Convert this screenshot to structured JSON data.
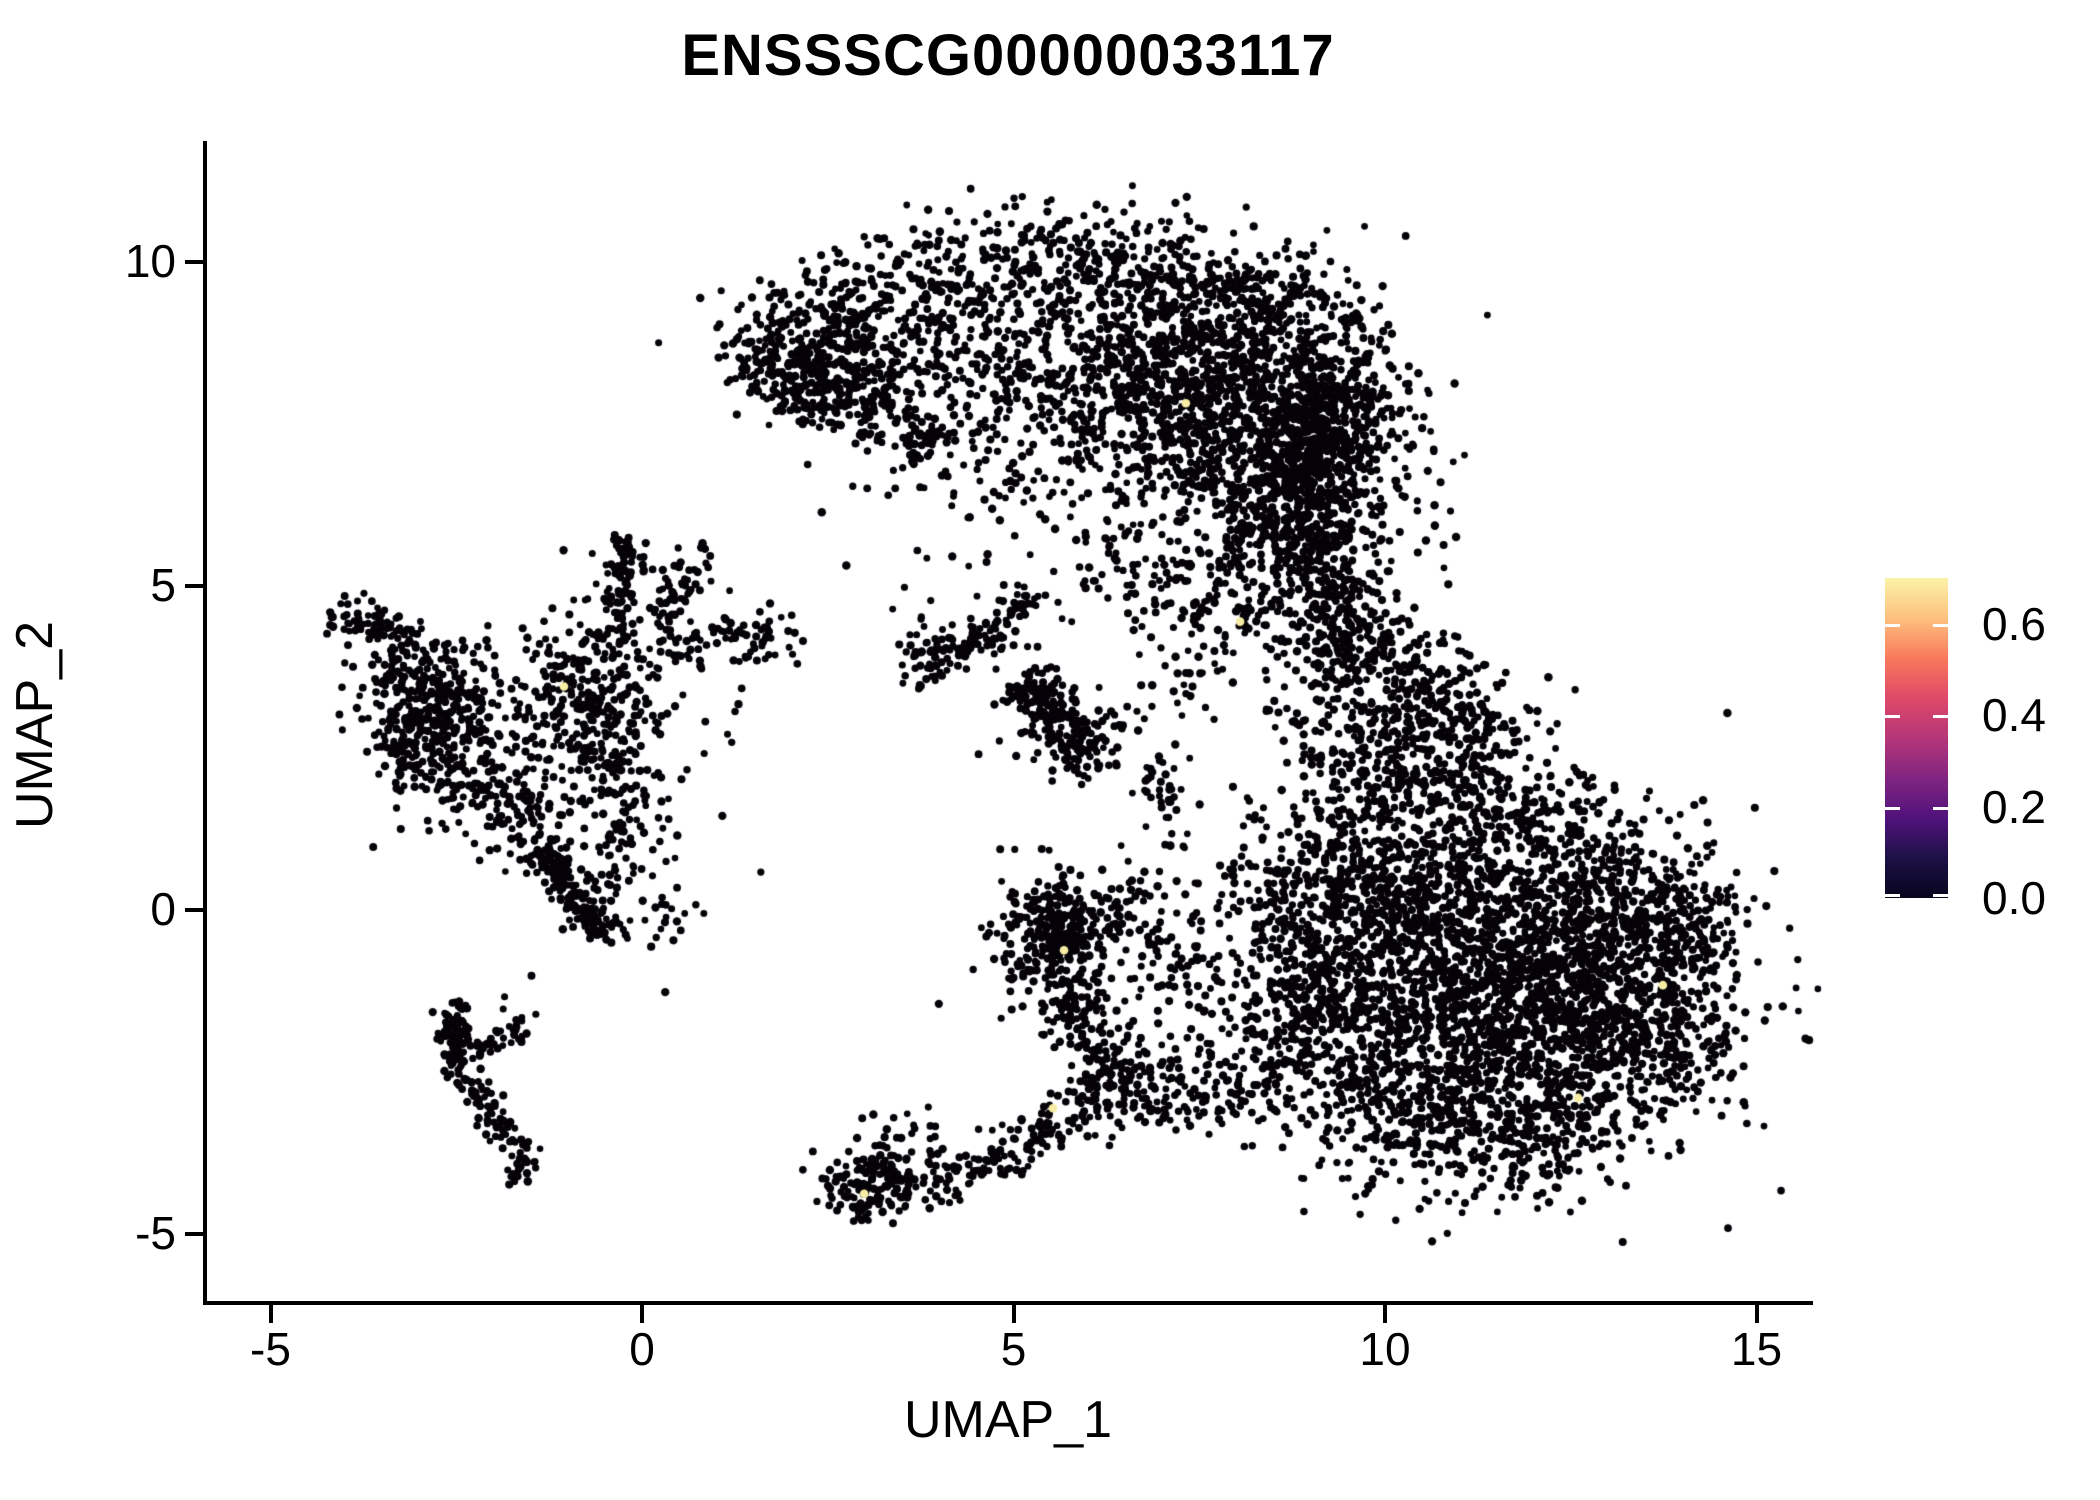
{
  "page": {
    "title": "ENSSSCG00000033117"
  },
  "chart_data": {
    "type": "scatter",
    "title": "ENSSSCG00000033117",
    "xlabel": "UMAP_1",
    "ylabel": "UMAP_2",
    "xlim": [
      -5.9,
      15.8
    ],
    "ylim": [
      -6.1,
      11.8
    ],
    "x_ticks": [
      -5,
      0,
      5,
      10,
      15
    ],
    "y_ticks": [
      -5,
      0,
      5,
      10
    ],
    "grid": false,
    "legend_position": "right",
    "point_color": "#050308",
    "highlight_color": "#F6ECA4",
    "colorbar": {
      "domain": [
        0.0,
        0.7
      ],
      "tick_values": [
        0.6,
        0.4,
        0.2,
        0.0
      ],
      "tick_labels": [
        "0.6",
        "0.4",
        "0.2",
        "0.0"
      ],
      "gradient_top_to_bottom": [
        "#FCF3A8",
        "#FDC17E",
        "#F9795C",
        "#DE4968",
        "#B63679",
        "#812581",
        "#51127C",
        "#1D1147",
        "#07051C"
      ]
    },
    "clusters": [
      {
        "kind": "blob",
        "c": [
          11.4,
          -1.4
        ],
        "s": [
          1.5,
          1.25
        ],
        "n": 2100
      },
      {
        "kind": "blob",
        "c": [
          10.1,
          0.6
        ],
        "s": [
          0.9,
          0.8
        ],
        "n": 450
      },
      {
        "kind": "blob",
        "c": [
          12.9,
          -0.4
        ],
        "s": [
          0.9,
          0.85
        ],
        "n": 450
      },
      {
        "kind": "blob",
        "c": [
          14.05,
          -0.45
        ],
        "s": [
          0.38,
          0.6
        ],
        "n": 130
      },
      {
        "kind": "band",
        "path": [
          [
            9.4,
            2.3
          ],
          [
            10.8,
            1.9
          ],
          [
            12.4,
            1.2
          ],
          [
            13.3,
            0.9
          ]
        ],
        "w": 0.45,
        "n": 330
      },
      {
        "kind": "band",
        "path": [
          [
            9.4,
            -3.1
          ],
          [
            10.8,
            -3.5
          ],
          [
            12.2,
            -3.5
          ],
          [
            13.0,
            -3.0
          ]
        ],
        "w": 0.45,
        "n": 330
      },
      {
        "kind": "band",
        "path": [
          [
            8.7,
            0.8
          ],
          [
            8.8,
            -0.8
          ],
          [
            9.3,
            -2.4
          ]
        ],
        "w": 0.5,
        "n": 320
      },
      {
        "kind": "blob",
        "c": [
          9.9,
          3.1
        ],
        "s": [
          0.75,
          0.7
        ],
        "n": 260
      },
      {
        "kind": "band",
        "path": [
          [
            10.3,
            3.7
          ],
          [
            11.0,
            3.0
          ],
          [
            11.6,
            2.3
          ]
        ],
        "w": 0.4,
        "n": 170
      },
      {
        "kind": "blob",
        "c": [
          13.5,
          -2.2
        ],
        "s": [
          0.6,
          0.55
        ],
        "n": 160
      },
      {
        "kind": "band",
        "path": [
          [
            9.1,
            8.4
          ],
          [
            8.85,
            7.0
          ],
          [
            9.0,
            5.6
          ],
          [
            9.3,
            4.6
          ],
          [
            9.6,
            3.8
          ]
        ],
        "w": 0.33,
        "n": 560
      },
      {
        "kind": "band",
        "path": [
          [
            9.1,
            8.2
          ],
          [
            8.9,
            6.8
          ],
          [
            9.1,
            5.4
          ],
          [
            9.5,
            4.3
          ]
        ],
        "w": 0.7,
        "n": 180
      },
      {
        "kind": "blob",
        "c": [
          8.2,
          5.6
        ],
        "s": [
          0.25,
          0.5
        ],
        "n": 25
      },
      {
        "kind": "blob",
        "c": [
          7.2,
          8.1
        ],
        "s": [
          1.25,
          0.95
        ],
        "n": 1250
      },
      {
        "kind": "blob",
        "c": [
          8.5,
          6.6
        ],
        "s": [
          0.75,
          1.0
        ],
        "n": 480
      },
      {
        "kind": "band",
        "path": [
          [
            1.25,
            8.65
          ],
          [
            2.3,
            9.3
          ],
          [
            3.6,
            9.85
          ],
          [
            5.1,
            10.1
          ],
          [
            6.6,
            10.0
          ],
          [
            8.1,
            9.6
          ],
          [
            9.3,
            9.15
          ]
        ],
        "w": 0.42,
        "n": 650
      },
      {
        "kind": "band",
        "path": [
          [
            1.5,
            8.35
          ],
          [
            2.5,
            8.1
          ],
          [
            3.3,
            7.6
          ]
        ],
        "w": 0.35,
        "n": 280
      },
      {
        "kind": "band",
        "path": [
          [
            2.0,
            8.8
          ],
          [
            3.0,
            8.6
          ],
          [
            4.0,
            8.55
          ],
          [
            5.0,
            8.9
          ]
        ],
        "w": 0.45,
        "n": 300
      },
      {
        "kind": "blob",
        "c": [
          4.7,
          6.9
        ],
        "s": [
          0.95,
          0.75
        ],
        "n": 110
      },
      {
        "kind": "blob",
        "c": [
          3.85,
          7.35
        ],
        "s": [
          0.18,
          0.14
        ],
        "n": 35
      },
      {
        "kind": "band",
        "path": [
          [
            6.0,
            5.5
          ],
          [
            7.2,
            4.9
          ],
          [
            8.3,
            4.7
          ]
        ],
        "w": 0.5,
        "n": 140
      },
      {
        "kind": "blob",
        "c": [
          9.55,
          7.6
        ],
        "s": [
          0.45,
          0.9
        ],
        "n": 220
      },
      {
        "kind": "blob",
        "c": [
          -2.6,
          2.75
        ],
        "s": [
          0.42,
          0.7
        ],
        "n": 270
      },
      {
        "kind": "blob",
        "c": [
          -0.75,
          3.3
        ],
        "s": [
          0.55,
          0.6
        ],
        "n": 240
      },
      {
        "kind": "band",
        "path": [
          [
            -0.35,
            4.2
          ],
          [
            -0.2,
            5.75
          ]
        ],
        "w": 0.15,
        "n": 95
      },
      {
        "kind": "band",
        "path": [
          [
            0.1,
            4.25
          ],
          [
            0.75,
            5.5
          ]
        ],
        "w": 0.14,
        "n": 60
      },
      {
        "kind": "band",
        "path": [
          [
            0.2,
            3.95
          ],
          [
            1.15,
            4.2
          ],
          [
            2.0,
            4.35
          ]
        ],
        "w": 0.2,
        "n": 80
      },
      {
        "kind": "band",
        "path": [
          [
            -0.6,
            2.7
          ],
          [
            -0.25,
            1.6
          ],
          [
            -0.2,
            0.3
          ]
        ],
        "w": 0.28,
        "n": 120
      },
      {
        "kind": "band",
        "path": [
          [
            -1.4,
            0.95
          ],
          [
            -0.5,
            -0.35
          ]
        ],
        "w": 0.14,
        "n": 170
      },
      {
        "kind": "blob",
        "c": [
          -0.9,
          2.3
        ],
        "s": [
          1.0,
          1.2
        ],
        "n": 140
      },
      {
        "kind": "band",
        "path": [
          [
            -2.1,
            2.0
          ],
          [
            -1.35,
            1.1
          ]
        ],
        "w": 0.25,
        "n": 70
      },
      {
        "kind": "blob",
        "c": [
          0.4,
          -0.15
        ],
        "s": [
          0.3,
          0.25
        ],
        "n": 18
      },
      {
        "kind": "blob",
        "c": [
          -3.05,
          3.35
        ],
        "s": [
          0.38,
          0.5
        ],
        "n": 165
      },
      {
        "kind": "band",
        "path": [
          [
            -4.15,
            4.3
          ],
          [
            -3.7,
            4.55
          ],
          [
            -3.35,
            4.15
          ]
        ],
        "w": 0.16,
        "n": 65
      },
      {
        "kind": "band",
        "path": [
          [
            -3.35,
            2.7
          ],
          [
            -2.95,
            2.15
          ]
        ],
        "w": 0.18,
        "n": 35
      },
      {
        "kind": "band",
        "path": [
          [
            3.6,
            4.0
          ],
          [
            4.55,
            4.15
          ]
        ],
        "w": 0.13,
        "n": 55
      },
      {
        "kind": "band",
        "path": [
          [
            4.6,
            4.2
          ],
          [
            5.25,
            4.85
          ]
        ],
        "w": 0.13,
        "n": 45
      },
      {
        "kind": "band",
        "path": [
          [
            3.55,
            3.45
          ],
          [
            4.05,
            3.9
          ]
        ],
        "w": 0.11,
        "n": 28
      },
      {
        "kind": "blob",
        "c": [
          4.4,
          4.3
        ],
        "s": [
          0.5,
          0.4
        ],
        "n": 22
      },
      {
        "kind": "band",
        "path": [
          [
            5.15,
            3.5
          ],
          [
            5.65,
            2.9
          ],
          [
            6.0,
            2.2
          ]
        ],
        "w": 0.2,
        "n": 185
      },
      {
        "kind": "blob",
        "c": [
          5.6,
          3.0
        ],
        "s": [
          0.45,
          0.5
        ],
        "n": 45
      },
      {
        "kind": "band",
        "path": [
          [
            6.15,
            2.7
          ],
          [
            6.6,
            3.0
          ]
        ],
        "w": 0.12,
        "n": 12
      },
      {
        "kind": "band",
        "path": [
          [
            6.95,
            2.5
          ],
          [
            7.1,
            1.0
          ]
        ],
        "w": 0.15,
        "n": 40
      },
      {
        "kind": "blob",
        "c": [
          7.55,
          4.3
        ],
        "s": [
          0.3,
          0.45
        ],
        "n": 18
      },
      {
        "kind": "blob",
        "c": [
          7.2,
          3.3
        ],
        "s": [
          0.25,
          0.3
        ],
        "n": 12
      },
      {
        "kind": "blob",
        "c": [
          5.55,
          -0.35
        ],
        "s": [
          0.36,
          0.42
        ],
        "n": 240
      },
      {
        "kind": "blob",
        "c": [
          5.6,
          -0.3
        ],
        "s": [
          0.7,
          0.75
        ],
        "n": 80
      },
      {
        "kind": "band",
        "path": [
          [
            5.8,
            -1.2
          ],
          [
            6.05,
            -2.2
          ]
        ],
        "w": 0.3,
        "n": 100
      },
      {
        "kind": "band",
        "path": [
          [
            6.1,
            -2.35
          ],
          [
            7.1,
            -2.85
          ],
          [
            8.0,
            -2.7
          ],
          [
            8.7,
            -2.5
          ]
        ],
        "w": 0.35,
        "n": 220
      },
      {
        "kind": "band",
        "path": [
          [
            7.1,
            -0.3
          ],
          [
            7.3,
            -1.5
          ]
        ],
        "w": 0.3,
        "n": 60
      },
      {
        "kind": "band",
        "path": [
          [
            6.4,
            -0.3
          ],
          [
            6.8,
            0.6
          ]
        ],
        "w": 0.25,
        "n": 40
      },
      {
        "kind": "blob",
        "c": [
          3.0,
          -4.2
        ],
        "s": [
          0.28,
          0.33
        ],
        "n": 115
      },
      {
        "kind": "band",
        "path": [
          [
            3.3,
            -4.3
          ],
          [
            4.3,
            -4.05
          ],
          [
            5.1,
            -3.6
          ],
          [
            5.85,
            -3.2
          ]
        ],
        "w": 0.2,
        "n": 160
      },
      {
        "kind": "blob",
        "c": [
          3.6,
          -3.3
        ],
        "s": [
          0.3,
          0.3
        ],
        "n": 18
      },
      {
        "kind": "band",
        "path": [
          [
            5.9,
            -3.15
          ],
          [
            6.6,
            -2.75
          ]
        ],
        "w": 0.25,
        "n": 50
      },
      {
        "kind": "band",
        "path": [
          [
            -2.55,
            -1.5
          ],
          [
            -2.5,
            -2.35
          ]
        ],
        "w": 0.09,
        "n": 65
      },
      {
        "kind": "blob",
        "c": [
          -2.53,
          -2.05
        ],
        "s": [
          0.1,
          0.15
        ],
        "n": 30
      },
      {
        "kind": "band",
        "path": [
          [
            -2.45,
            -2.45
          ],
          [
            -1.8,
            -3.55
          ]
        ],
        "w": 0.11,
        "n": 70
      },
      {
        "kind": "blob",
        "c": [
          -1.62,
          -3.85
        ],
        "s": [
          0.12,
          0.16
        ],
        "n": 30
      },
      {
        "kind": "band",
        "path": [
          [
            -2.2,
            -2.25
          ],
          [
            -1.6,
            -1.8
          ]
        ],
        "w": 0.11,
        "n": 35
      },
      {
        "kind": "blob",
        "c": [
          -2.0,
          -1.4
        ],
        "s": [
          0.5,
          0.15
        ],
        "n": 5
      }
    ],
    "highlight_points": [
      [
        -1.05,
        3.45
      ],
      [
        8.05,
        4.45
      ],
      [
        7.32,
        7.82
      ],
      [
        2.99,
        -4.38
      ],
      [
        5.53,
        -3.06
      ],
      [
        5.68,
        -0.62
      ],
      [
        13.74,
        -1.16
      ],
      [
        12.6,
        -2.9
      ]
    ]
  }
}
